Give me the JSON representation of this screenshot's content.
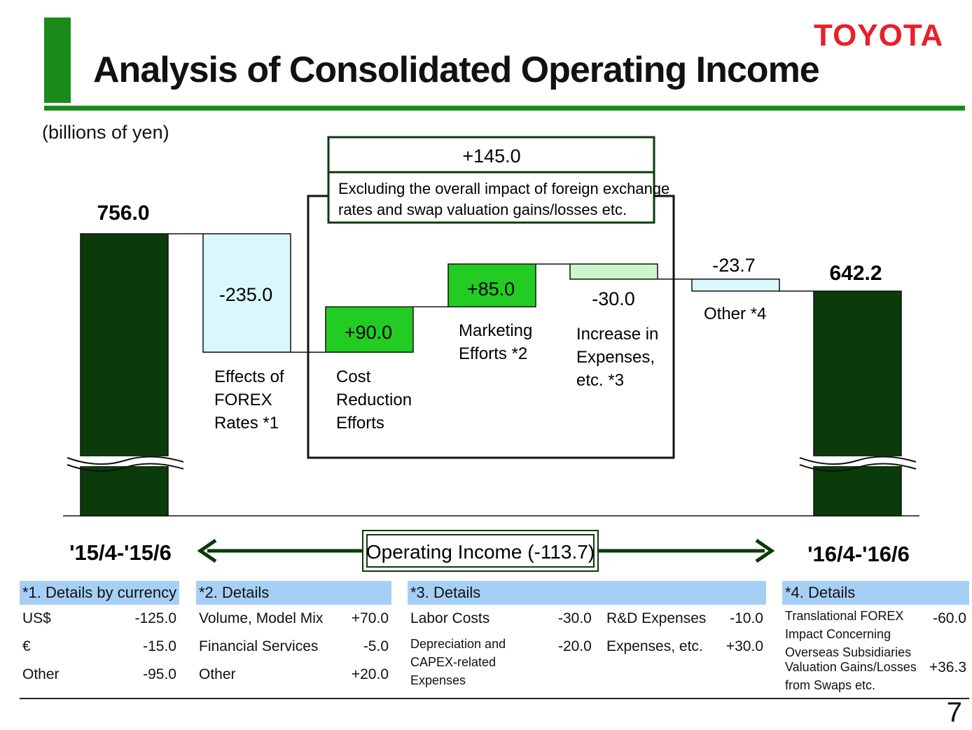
{
  "header": {
    "title": "Analysis of Consolidated Operating Income",
    "logo": "TOYOTA",
    "unit": "(billions of yen)",
    "accent_color": "#1a8a1a",
    "logo_color": "#e8202a"
  },
  "chart_data": {
    "type": "bar",
    "subtype": "waterfall",
    "categories": [
      "'15/4-'15/6",
      "Effects of FOREX Rates *1",
      "Cost Reduction Efforts",
      "Marketing Efforts *2",
      "Increase in Expenses, etc. *3",
      "Other *4",
      "'16/4-'16/6"
    ],
    "values": [
      756.0,
      -235.0,
      90.0,
      85.0,
      -30.0,
      -23.7,
      642.2
    ],
    "value_labels": [
      "756.0",
      "-235.0",
      "+90.0",
      "+85.0",
      "-30.0",
      "-23.7",
      "642.2"
    ],
    "start_label": "'15/4-'15/6",
    "end_label": "'16/4-'16/6",
    "bracket_total": "+145.0",
    "bracket_note_line1": "Excluding the overall impact of foreign exchange",
    "bracket_note_line2": "rates and swap valuation gains/losses etc.",
    "operating_income_label": "Operating Income (-113.7)",
    "labels": {
      "forex": [
        "Effects of",
        "FOREX",
        "Rates *1"
      ],
      "cost": [
        "Cost",
        "Reduction",
        "Efforts"
      ],
      "marketing": [
        "Marketing",
        "Efforts *2"
      ],
      "expenses": [
        "Increase in",
        "Expenses,",
        "etc. *3"
      ],
      "other": "Other *4"
    },
    "colors": {
      "total": "#0b3a0b",
      "positive": "#22cc22",
      "negative_light": "#d9f7fc",
      "expenses": "#ccf5cc"
    }
  },
  "details": {
    "currency": {
      "header": "*1. Details by currency",
      "rows": [
        {
          "label": "US$",
          "value": "-125.0"
        },
        {
          "label": "€",
          "value": "-15.0"
        },
        {
          "label": "Other",
          "value": "-95.0"
        }
      ]
    },
    "marketing": {
      "header": "*2. Details",
      "rows": [
        {
          "label": "Volume, Model Mix",
          "value": "+70.0"
        },
        {
          "label": "Financial Services",
          "value": "-5.0"
        },
        {
          "label": "Other",
          "value": "+20.0"
        }
      ]
    },
    "expenses": {
      "header": "*3. Details",
      "labor_label": "Labor Costs",
      "labor_value": "-30.0",
      "rd_label": "R&D Expenses",
      "rd_value": "-10.0",
      "depr_line1": "Depreciation and",
      "depr_line2": "CAPEX-related",
      "depr_line3": "Expenses",
      "depr_value": "-20.0",
      "exp_label": "Expenses, etc.",
      "exp_value": "+30.0"
    },
    "other": {
      "header": "*4. Details",
      "forex_line1": "Translational FOREX",
      "forex_line2": "Impact Concerning",
      "forex_line3": "Overseas Subsidiaries",
      "forex_value": "-60.0",
      "swap_line1": "Valuation Gains/Losses",
      "swap_line2": "from Swaps etc.",
      "swap_value": "+36.3"
    }
  },
  "page_number": "7"
}
